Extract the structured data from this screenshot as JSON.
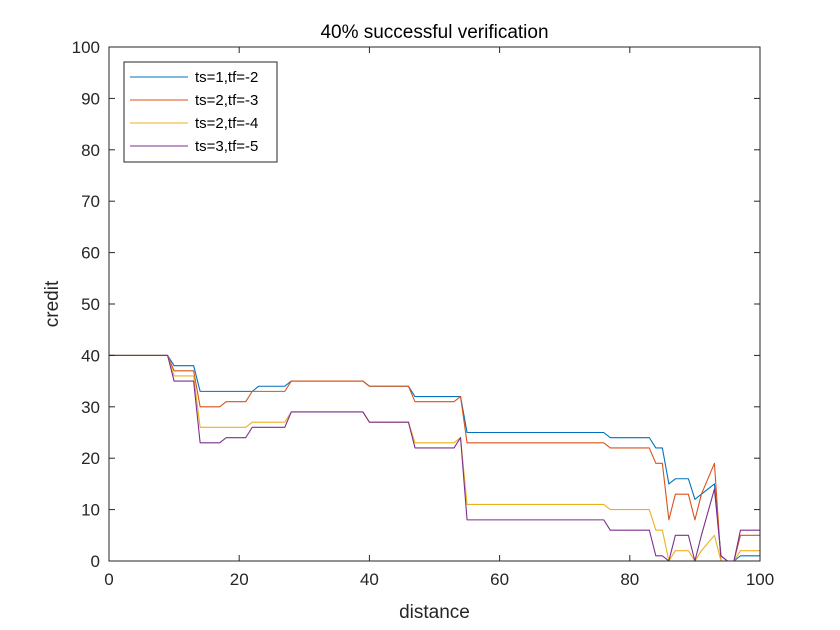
{
  "chart_data": {
    "type": "line",
    "title": "40% successful verification",
    "xlabel": "distance",
    "ylabel": "credit",
    "xlim": [
      0,
      100
    ],
    "ylim": [
      0,
      100
    ],
    "xticks": [
      0,
      20,
      40,
      60,
      80,
      100
    ],
    "yticks": [
      0,
      10,
      20,
      30,
      40,
      50,
      60,
      70,
      80,
      90,
      100
    ],
    "grid": false,
    "legend_position": "top-left",
    "series": [
      {
        "name": "ts=1,tf=-2",
        "color": "#0072BD",
        "x": [
          0,
          9,
          10,
          13,
          14,
          18,
          19,
          22,
          23,
          27,
          28,
          30,
          39,
          40,
          46,
          47,
          53,
          54,
          55,
          76,
          77,
          83,
          84,
          85,
          86,
          87,
          89,
          90,
          91,
          93,
          94,
          95,
          96,
          97,
          99,
          100
        ],
        "y": [
          40,
          40,
          38,
          38,
          33,
          33,
          33,
          33,
          34,
          34,
          35,
          35,
          35,
          34,
          34,
          32,
          32,
          32,
          25,
          25,
          24,
          24,
          22,
          22,
          15,
          16,
          16,
          12,
          13,
          15,
          1,
          0,
          0,
          1,
          1,
          1
        ]
      },
      {
        "name": "ts=2,tf=-3",
        "color": "#D95319",
        "x": [
          0,
          9,
          10,
          13,
          14,
          17,
          18,
          21,
          22,
          27,
          28,
          30,
          39,
          40,
          46,
          47,
          53,
          54,
          55,
          76,
          77,
          83,
          84,
          85,
          86,
          87,
          89,
          90,
          91,
          93,
          94,
          95,
          96,
          97,
          99,
          100
        ],
        "y": [
          40,
          40,
          37,
          37,
          30,
          30,
          31,
          31,
          33,
          33,
          35,
          35,
          35,
          34,
          34,
          31,
          31,
          32,
          23,
          23,
          22,
          22,
          19,
          19,
          8,
          13,
          13,
          8,
          13,
          19,
          0,
          0,
          0,
          5,
          5,
          5
        ]
      },
      {
        "name": "ts=2,tf=-4",
        "color": "#EDB120",
        "x": [
          0,
          9,
          10,
          13,
          14,
          17,
          18,
          21,
          22,
          27,
          28,
          30,
          39,
          40,
          46,
          47,
          53,
          54,
          55,
          76,
          77,
          83,
          84,
          85,
          86,
          87,
          89,
          90,
          91,
          93,
          94,
          95,
          96,
          97,
          99,
          100
        ],
        "y": [
          40,
          40,
          36,
          36,
          26,
          26,
          26,
          26,
          27,
          27,
          29,
          29,
          29,
          27,
          27,
          23,
          23,
          24,
          11,
          11,
          10,
          10,
          6,
          6,
          0,
          2,
          2,
          0,
          2,
          5,
          0,
          0,
          0,
          2,
          2,
          2
        ]
      },
      {
        "name": "ts=3,tf=-5",
        "color": "#7E2F8E",
        "x": [
          0,
          9,
          10,
          13,
          14,
          17,
          18,
          21,
          22,
          27,
          28,
          30,
          39,
          40,
          46,
          47,
          53,
          54,
          55,
          76,
          77,
          83,
          84,
          85,
          86,
          87,
          89,
          90,
          91,
          93,
          94,
          95,
          96,
          97,
          99,
          100
        ],
        "y": [
          40,
          40,
          35,
          35,
          23,
          23,
          24,
          24,
          26,
          26,
          29,
          29,
          29,
          27,
          27,
          22,
          22,
          24,
          8,
          8,
          6,
          6,
          1,
          1,
          0,
          5,
          5,
          0,
          5,
          14,
          1,
          0,
          0,
          6,
          6,
          6
        ]
      }
    ]
  }
}
